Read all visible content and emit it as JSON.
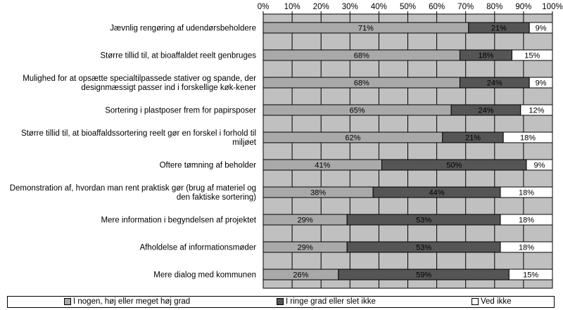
{
  "chart_data": {
    "type": "bar",
    "orientation": "horizontal",
    "stacked": true,
    "categories": [
      "Jævnlig rengøring af udendørsbeholdere",
      "Større tillid til, at bioaffaldet reelt genbruges",
      "Mulighed for at opsætte specialtilpassede stativer og spande, der designmæssigt passer ind i forskellige køk-kener",
      "Sortering i plastposer frem for papirsposer",
      "Større tillid til, at bioaffaldssortering reelt gør en forskel i forhold til miljøet",
      "Oftere tømning af beholder",
      "Demonstration af, hvordan man rent praktisk gør (brug af materiel og den faktiske sortering)",
      "Mere information i begyndelsen af projektet",
      "Afholdelse af informationsmøder",
      "Mere dialog med kommunen"
    ],
    "series": [
      {
        "name": "I nogen, høj eller meget høj grad",
        "color": "#a9a9a9",
        "values": [
          71,
          68,
          68,
          65,
          62,
          41,
          38,
          29,
          29,
          26
        ]
      },
      {
        "name": "I ringe grad eller slet ikke",
        "color": "#555555",
        "values": [
          21,
          18,
          24,
          24,
          21,
          50,
          44,
          53,
          53,
          59
        ]
      },
      {
        "name": "Ved ikke",
        "color": "#ffffff",
        "values": [
          9,
          15,
          9,
          12,
          18,
          9,
          18,
          18,
          18,
          15
        ]
      }
    ],
    "xlim": [
      0,
      100
    ],
    "x_ticks": [
      "0%",
      "10%",
      "20%",
      "30%",
      "40%",
      "50%",
      "60%",
      "70%",
      "80%",
      "90%",
      "100%"
    ],
    "value_suffix": "%",
    "grid": true,
    "legend_position": "bottom"
  }
}
